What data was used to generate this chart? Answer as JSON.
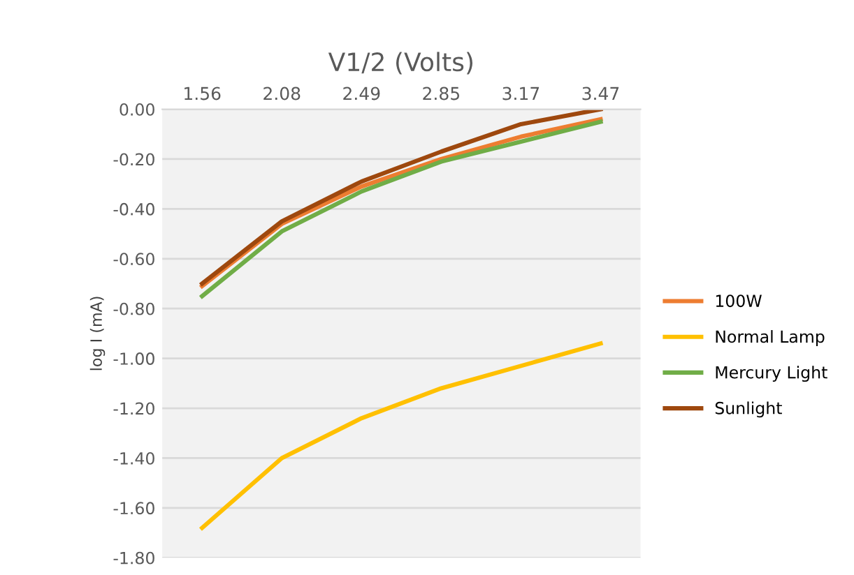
{
  "chart_data": {
    "type": "line",
    "xlabel": "V1/2 (Volts)",
    "ylabel": "log I (mA)",
    "categories": [
      "1.56",
      "2.08",
      "2.49",
      "2.85",
      "3.17",
      "3.47"
    ],
    "series": [
      {
        "name": "100W",
        "color": "#ed7d31",
        "values": [
          -0.71,
          -0.46,
          -0.31,
          -0.2,
          -0.11,
          -0.04
        ]
      },
      {
        "name": "Normal Lamp",
        "color": "#ffc000",
        "values": [
          -1.68,
          -1.4,
          -1.24,
          -1.12,
          -1.03,
          -0.94
        ]
      },
      {
        "name": "Mercury Light",
        "color": "#70ad47",
        "values": [
          -0.75,
          -0.49,
          -0.33,
          -0.21,
          -0.13,
          -0.05
        ]
      },
      {
        "name": "Sunlight",
        "color": "#9e480e",
        "values": [
          -0.7,
          -0.45,
          -0.29,
          -0.17,
          -0.06,
          0.0
        ]
      }
    ],
    "ylim": [
      -1.8,
      0.0
    ],
    "yticks": [
      {
        "value": 0.0,
        "label": "0.00"
      },
      {
        "value": -0.2,
        "label": "-0.20"
      },
      {
        "value": -0.4,
        "label": "-0.40"
      },
      {
        "value": -0.6,
        "label": "-0.60"
      },
      {
        "value": -0.8,
        "label": "-0.80"
      },
      {
        "value": -1.0,
        "label": "-1.00"
      },
      {
        "value": -1.2,
        "label": "-1.20"
      },
      {
        "value": -1.4,
        "label": "-1.40"
      },
      {
        "value": -1.6,
        "label": "-1.60"
      },
      {
        "value": -1.8,
        "label": "-1.80"
      }
    ],
    "grid": "y",
    "legend": "right",
    "line_style": "solid",
    "marker": "none"
  }
}
